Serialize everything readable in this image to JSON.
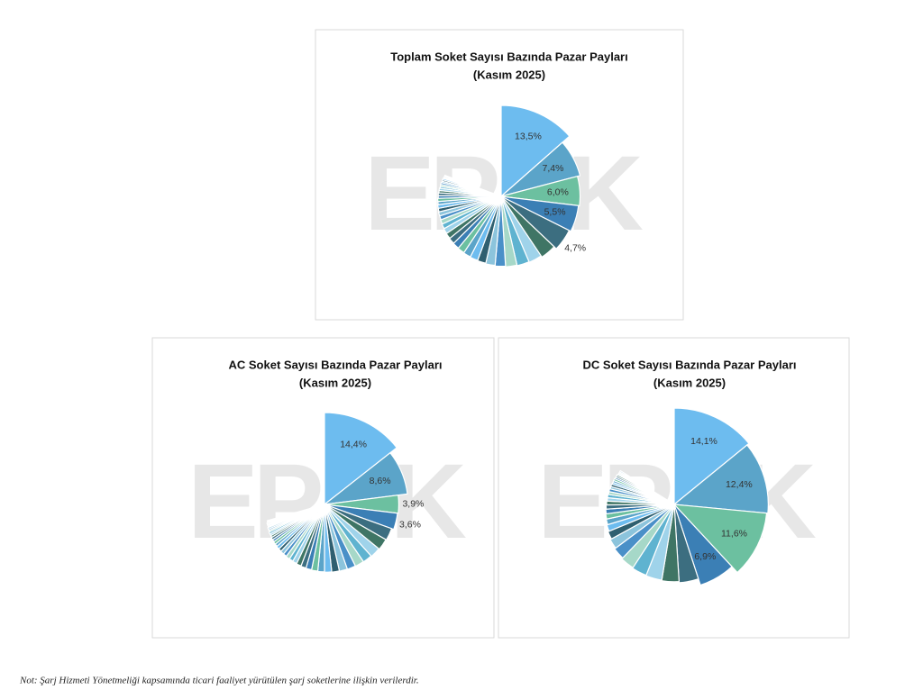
{
  "chart_data": [
    {
      "type": "pie",
      "title": "Toplam Soket Sayısı Bazında Pazar Payları",
      "subtitle": "(Kasım 2025)",
      "watermark": "EPDK",
      "values": [
        13.5,
        7.4,
        6.0,
        5.5,
        4.7,
        3.5,
        3.0,
        2.8,
        2.6,
        2.4,
        2.2,
        2.0,
        1.9,
        1.8,
        1.7,
        1.6,
        1.5,
        1.4,
        1.3,
        1.2,
        1.1,
        1.0,
        1.0,
        0.9,
        0.9,
        0.8,
        0.8,
        0.7,
        0.7,
        0.6,
        0.6,
        0.5,
        0.5,
        0.5,
        0.4,
        0.4,
        0.4,
        0.3,
        0.3,
        0.3
      ],
      "value_labels": [
        "13,5%",
        "7,4%",
        "6,0%",
        "5,5%",
        "4,7%",
        null,
        null,
        null,
        null,
        null,
        null,
        null,
        null,
        null,
        null,
        null,
        null,
        null,
        null,
        null,
        null,
        null,
        null,
        null,
        null,
        null,
        null,
        null,
        null,
        null,
        null,
        null,
        null,
        null,
        null,
        null,
        null,
        null,
        null,
        null
      ],
      "colors": [
        "#6dbcef",
        "#5ba4c9",
        "#6cc0a0",
        "#3b7fb5",
        "#3c6e80",
        "#3f7565",
        "#9fd3ea",
        "#5fb3d0",
        "#a6d8c8",
        "#4a90c8",
        "#8cc4dc",
        "#2f5f70"
      ]
    },
    {
      "type": "pie",
      "title": "AC Soket Sayısı Bazında Pazar Payları",
      "subtitle": "(Kasım 2025)",
      "watermark": "EPDK",
      "values": [
        14.4,
        8.6,
        3.9,
        3.6,
        2.8,
        2.6,
        2.4,
        2.2,
        2.1,
        2.0,
        1.9,
        1.8,
        1.7,
        1.6,
        1.5,
        1.4,
        1.3,
        1.2,
        1.1,
        1.0,
        1.0,
        0.9,
        0.9,
        0.8,
        0.8,
        0.7,
        0.7,
        0.6,
        0.6,
        0.5,
        0.5,
        0.5,
        0.4,
        0.4,
        0.4,
        0.3,
        0.3,
        0.3,
        0.3,
        0.2,
        0.2,
        0.2
      ],
      "value_labels": [
        "14,4%",
        "8,6%",
        "3,9%",
        "3,6%",
        null,
        null,
        null,
        null,
        null,
        null,
        null,
        null,
        null,
        null,
        null,
        null,
        null,
        null,
        null,
        null,
        null,
        null,
        null,
        null,
        null,
        null,
        null,
        null,
        null,
        null,
        null,
        null,
        null,
        null,
        null,
        null,
        null,
        null,
        null,
        null,
        null,
        null
      ],
      "colors": [
        "#6dbcef",
        "#5ba4c9",
        "#6cc0a0",
        "#3b7fb5",
        "#3c6e80",
        "#3f7565",
        "#9fd3ea",
        "#5fb3d0",
        "#a6d8c8",
        "#4a90c8",
        "#8cc4dc",
        "#2f5f70"
      ]
    },
    {
      "type": "pie",
      "title": "DC Soket Sayısı Bazında Pazar Payları",
      "subtitle": "(Kasım 2025)",
      "watermark": "EPDK",
      "values": [
        14.1,
        12.4,
        11.6,
        6.9,
        4.0,
        3.6,
        3.4,
        3.2,
        3.0,
        2.6,
        2.2,
        1.8,
        1.5,
        1.3,
        1.2,
        1.1,
        1.0,
        0.9,
        0.8,
        0.8,
        0.7,
        0.7,
        0.6,
        0.6,
        0.5,
        0.5,
        0.5,
        0.4,
        0.4,
        0.4,
        0.3,
        0.3,
        0.3,
        0.3
      ],
      "value_labels": [
        "14,1%",
        "12,4%",
        "11,6%",
        "6,9%",
        null,
        null,
        null,
        null,
        null,
        null,
        null,
        null,
        null,
        null,
        null,
        null,
        null,
        null,
        null,
        null,
        null,
        null,
        null,
        null,
        null,
        null,
        null,
        null,
        null,
        null,
        null,
        null,
        null,
        null
      ],
      "colors": [
        "#6dbcef",
        "#5ba4c9",
        "#6cc0a0",
        "#3b7fb5",
        "#3c6e80",
        "#3f7565",
        "#9fd3ea",
        "#5fb3d0",
        "#a6d8c8",
        "#4a90c8",
        "#8cc4dc",
        "#2f5f70"
      ]
    }
  ],
  "note": "Not: Şarj Hizmeti Yönetmeliği kapsamında ticari faaliyet yürütülen şarj soketlerine ilişkin verilerdir."
}
